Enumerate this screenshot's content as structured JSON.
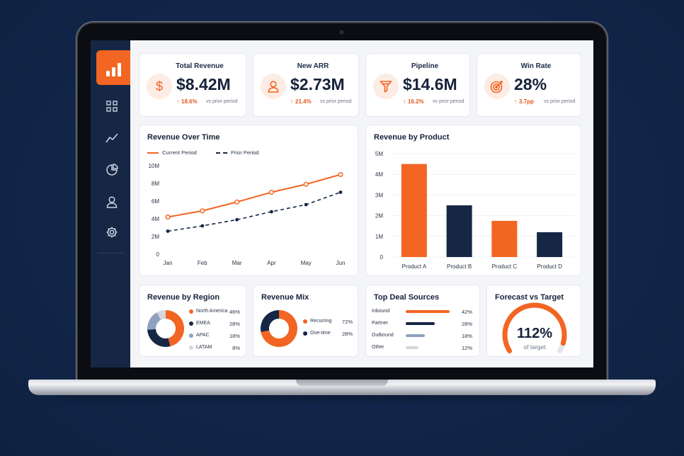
{
  "colors": {
    "accent": "#f26522",
    "navy": "#152744",
    "slate": "#8fa1bd",
    "light": "#d3d6dc",
    "background": "#12264a"
  },
  "nav": {
    "icons": [
      "bar-chart-logo-icon",
      "grid-icon",
      "trend-icon",
      "pie-icon",
      "user-icon",
      "gear-icon"
    ]
  },
  "kpis": [
    {
      "title": "Total Revenue",
      "value": "$8.42M",
      "change": "18.6%",
      "compare": "vs prior period",
      "icon": "dollar-icon"
    },
    {
      "title": "New ARR",
      "value": "$2.73M",
      "change": "21.4%",
      "compare": "vs prior period",
      "icon": "user-icon"
    },
    {
      "title": "Pipeline",
      "value": "$14.6M",
      "change": "16.2%",
      "compare": "vs prior period",
      "icon": "funnel-icon"
    },
    {
      "title": "Win Rate",
      "value": "28%",
      "change": "3.7pp",
      "compare": "vs prior period",
      "icon": "target-icon"
    }
  ],
  "chart_data": [
    {
      "type": "line",
      "title": "Revenue Over Time",
      "x": [
        "Jan",
        "Feb",
        "Mar",
        "Apr",
        "May",
        "Jun"
      ],
      "yticks": [
        "0",
        "2M",
        "4M",
        "6M",
        "8M",
        "10M"
      ],
      "ylim": [
        0,
        10
      ],
      "series": [
        {
          "name": "Current Period",
          "values": [
            4.2,
            4.9,
            5.9,
            7.0,
            7.9,
            9.0
          ]
        },
        {
          "name": "Prior Period",
          "values": [
            2.6,
            3.2,
            3.9,
            4.8,
            5.6,
            7.0
          ]
        }
      ]
    },
    {
      "type": "bar",
      "title": "Revenue by Product",
      "categories": [
        "Product A",
        "Product B",
        "Product C",
        "Product D"
      ],
      "values": [
        4.5,
        2.5,
        1.75,
        1.2
      ],
      "yticks": [
        "0",
        "1M",
        "2M",
        "3M",
        "4M",
        "5M"
      ],
      "ylim": [
        0,
        5
      ]
    },
    {
      "type": "pie",
      "title": "Revenue by Region",
      "labels": [
        "North America",
        "EMEA",
        "APAC",
        "LATAM"
      ],
      "display": [
        "46%",
        "28%",
        "18%",
        "8%"
      ],
      "values": [
        46,
        28,
        18,
        8
      ]
    },
    {
      "type": "pie",
      "title": "Revenue Mix",
      "labels": [
        "Recurring",
        "One-time"
      ],
      "display": [
        "72%",
        "28%"
      ],
      "values": [
        72,
        28
      ]
    },
    {
      "type": "bar",
      "title": "Top Deal Sources",
      "categories": [
        "Inbound",
        "Partner",
        "Outbound",
        "Other"
      ],
      "display": [
        "42%",
        "28%",
        "18%",
        "12%"
      ],
      "values": [
        42,
        28,
        18,
        12
      ]
    }
  ],
  "forecast": {
    "title": "Forecast vs Target",
    "value": "112%",
    "caption": "of target",
    "level": 1.12
  }
}
